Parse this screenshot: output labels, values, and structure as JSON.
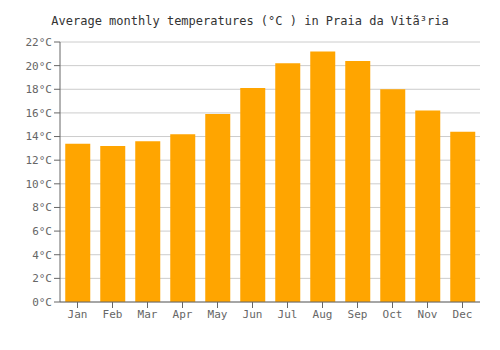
{
  "chart_data": {
    "type": "bar",
    "title": "Average monthly temperatures (°C ) in Praia da Vitã³ria",
    "categories": [
      "Jan",
      "Feb",
      "Mar",
      "Apr",
      "May",
      "Jun",
      "Jul",
      "Aug",
      "Sep",
      "Oct",
      "Nov",
      "Dec"
    ],
    "values": [
      13.4,
      13.2,
      13.6,
      14.2,
      15.9,
      18.1,
      20.2,
      21.2,
      20.4,
      18.0,
      16.2,
      14.4
    ],
    "color": "#FFA500",
    "ylim": [
      0,
      22
    ],
    "yticks": [
      {
        "value": 0,
        "label": "0°C"
      },
      {
        "value": 2,
        "label": "2°C"
      },
      {
        "value": 4,
        "label": "4°C"
      },
      {
        "value": 6,
        "label": "6°C"
      },
      {
        "value": 8,
        "label": "8°C"
      },
      {
        "value": 10,
        "label": "10°C"
      },
      {
        "value": 12,
        "label": "12°C"
      },
      {
        "value": 14,
        "label": "14°C"
      },
      {
        "value": 16,
        "label": "16°C"
      },
      {
        "value": 18,
        "label": "18°C"
      },
      {
        "value": 20,
        "label": "20°C"
      },
      {
        "value": 22,
        "label": "22°C"
      }
    ],
    "grid": true
  }
}
